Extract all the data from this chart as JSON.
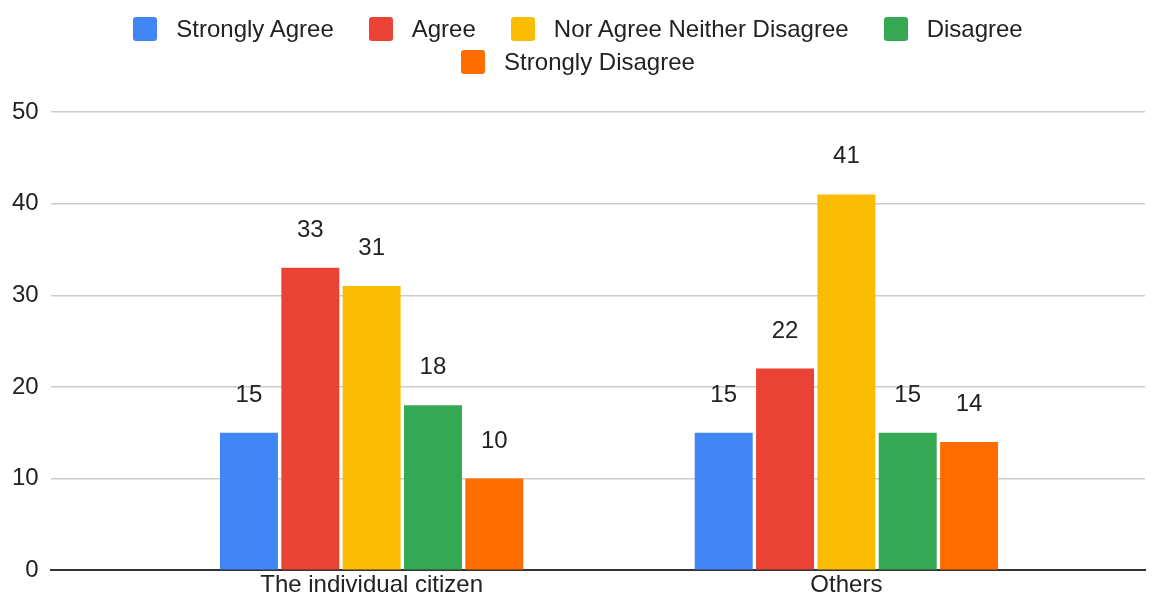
{
  "chart_data": {
    "type": "bar",
    "categories": [
      "The individual citizen",
      "Others"
    ],
    "series": [
      {
        "name": "Strongly Agree",
        "color": "#4285f4",
        "values": [
          15,
          15
        ]
      },
      {
        "name": "Agree",
        "color": "#ea4335",
        "values": [
          33,
          22
        ]
      },
      {
        "name": "Nor Agree Neither Disagree",
        "color": "#fbbc04",
        "values": [
          31,
          41
        ]
      },
      {
        "name": "Disagree",
        "color": "#34a853",
        "values": [
          18,
          15
        ]
      },
      {
        "name": "Strongly Disagree",
        "color": "#ff6d01",
        "values": [
          10,
          14
        ]
      }
    ],
    "ylim": [
      0,
      50
    ],
    "yticks": [
      0,
      10,
      20,
      30,
      40,
      50
    ],
    "grid": "y",
    "legend": "top",
    "data_labels": true
  }
}
